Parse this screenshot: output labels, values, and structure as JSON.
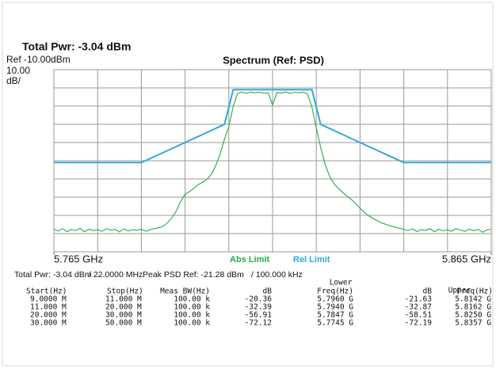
{
  "header": {
    "total_power": "Total Pwr:  -3.04 dBm"
  },
  "chart_data": {
    "type": "line",
    "title": "Spectrum (Ref: PSD)",
    "y_labels": [
      "Ref -10.00dBm",
      "10.00",
      "dB/"
    ],
    "xlim": [
      5.765,
      5.865
    ],
    "ylim": [
      -110,
      -10
    ],
    "xticks": [
      {
        "value": 5.765,
        "label": "5.765 GHz"
      },
      {
        "value": 5.865,
        "label": "5.865 GHz"
      }
    ],
    "xgrid": [
      5.765,
      5.775,
      5.785,
      5.795,
      5.805,
      5.815,
      5.825,
      5.835,
      5.845,
      5.855,
      5.865
    ],
    "ygrid": [
      -10,
      -20,
      -30,
      -40,
      -50,
      -60,
      -70,
      -80,
      -90,
      -100,
      -110
    ],
    "grid": true,
    "series": [
      {
        "name": "Rel Limit",
        "color": "#33a8d8",
        "x": [
          5.765,
          5.785,
          5.795,
          5.804,
          5.806,
          5.824,
          5.826,
          5.835,
          5.845,
          5.865
        ],
        "values": [
          -61,
          -61,
          -50,
          -40,
          -21,
          -21,
          -40,
          -50,
          -61,
          -61
        ]
      },
      {
        "name": "Abs Limit",
        "color": "#2aa84a",
        "x": [
          5.765,
          5.766,
          5.767,
          5.768,
          5.769,
          5.77,
          5.771,
          5.772,
          5.773,
          5.774,
          5.775,
          5.776,
          5.777,
          5.778,
          5.779,
          5.78,
          5.781,
          5.782,
          5.783,
          5.784,
          5.785,
          5.786,
          5.787,
          5.788,
          5.789,
          5.79,
          5.791,
          5.792,
          5.793,
          5.794,
          5.795,
          5.796,
          5.797,
          5.798,
          5.799,
          5.8,
          5.801,
          5.802,
          5.803,
          5.804,
          5.805,
          5.806,
          5.807,
          5.808,
          5.809,
          5.81,
          5.811,
          5.812,
          5.813,
          5.814,
          5.815,
          5.816,
          5.817,
          5.818,
          5.819,
          5.82,
          5.821,
          5.822,
          5.823,
          5.824,
          5.825,
          5.826,
          5.827,
          5.828,
          5.829,
          5.83,
          5.831,
          5.832,
          5.833,
          5.834,
          5.835,
          5.836,
          5.837,
          5.838,
          5.839,
          5.84,
          5.841,
          5.842,
          5.843,
          5.844,
          5.845,
          5.846,
          5.847,
          5.848,
          5.849,
          5.85,
          5.851,
          5.852,
          5.853,
          5.854,
          5.855,
          5.856,
          5.857,
          5.858,
          5.859,
          5.86,
          5.861,
          5.862,
          5.863,
          5.864,
          5.865
        ],
        "values": [
          -97.5,
          -98.6,
          -97.2,
          -98.9,
          -97.8,
          -98.3,
          -97.1,
          -99.0,
          -97.6,
          -98.4,
          -97.9,
          -98.8,
          -97.3,
          -98.1,
          -97.7,
          -99.1,
          -97.4,
          -98.5,
          -97.8,
          -98.2,
          -97.5,
          -98.7,
          -97.9,
          -97.2,
          -96.8,
          -95.9,
          -94.1,
          -91.2,
          -87.5,
          -82.3,
          -78.4,
          -76.9,
          -75.2,
          -73.1,
          -71.8,
          -70.2,
          -67.5,
          -62.8,
          -56.4,
          -48.1,
          -41.3,
          -30.2,
          -23.1,
          -22.4,
          -23.0,
          -22.2,
          -22.8,
          -22.3,
          -23.1,
          -22.6,
          -29.5,
          -22.5,
          -22.9,
          -22.2,
          -23.0,
          -22.4,
          -22.7,
          -22.3,
          -23.4,
          -30.5,
          -42.1,
          -52.6,
          -61.8,
          -68.4,
          -72.5,
          -75.1,
          -77.3,
          -79.4,
          -81.2,
          -83.5,
          -86.1,
          -88.4,
          -90.2,
          -91.8,
          -93.1,
          -94.2,
          -95.0,
          -95.8,
          -96.4,
          -97.1,
          -97.6,
          -98.3,
          -97.4,
          -98.9,
          -97.8,
          -98.2,
          -97.3,
          -99.0,
          -97.6,
          -98.5,
          -97.9,
          -98.7,
          -97.2,
          -98.1,
          -98.8,
          -97.5,
          -98.4,
          -97.7,
          -99.2,
          -98.0,
          -97.6
        ]
      }
    ]
  },
  "info": [
    "Total Pwr: -3.04 dBm",
    "/ 22.0000 MHz",
    "Peak PSD Ref: -21.28 dBm",
    "/ 100.000 kHz"
  ],
  "table": {
    "group_lower": "Lower",
    "group_upper": "Upper",
    "headers": [
      "Start(Hz)",
      "Stop(Hz)",
      "Meas BW(Hz)",
      "dB",
      "Freq(Hz)",
      "dB",
      "Freq(Hz)"
    ],
    "rows": [
      [
        "9.0000 M",
        "11.000 M",
        "100.00 k",
        "-20.36",
        "5.7960 G",
        "-21.63",
        "5.8142 G"
      ],
      [
        "11.000 M",
        "20.000 M",
        "100.00 k",
        "-32.39",
        "5.7940 G",
        "-32.87",
        "5.8162 G"
      ],
      [
        "20.000 M",
        "30.000 M",
        "100.00 k",
        "-56.91",
        "5.7847 G",
        "-58.51",
        "5.8250 G"
      ],
      [
        "30.000 M",
        "50.000 M",
        "100.00 k",
        "-72.12",
        "5.7745 G",
        "-72.19",
        "5.8357 G"
      ]
    ]
  }
}
